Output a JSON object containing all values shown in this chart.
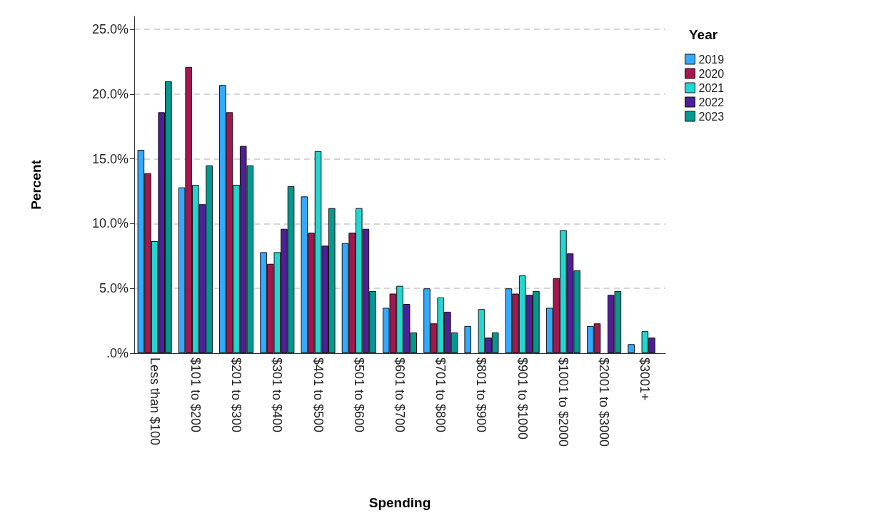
{
  "chart_data": {
    "type": "bar",
    "xlabel": "Spending",
    "ylabel": "Percent",
    "legend_title": "Year",
    "categories": [
      "Less than $100",
      "$101 to $200",
      "$201 to $300",
      "$301 to $400",
      "$401 to $500",
      "$501 to $600",
      "$601 to $700",
      "$701 to $800",
      "$801 to $900",
      "$901 to $1000",
      "$1001 to $2000",
      "$2001 to $3000",
      "$3001+"
    ],
    "series": [
      {
        "name": "2019",
        "color": "#33aaff",
        "values": [
          15.7,
          12.8,
          20.7,
          7.8,
          12.1,
          8.5,
          3.5,
          5.0,
          2.1,
          5.0,
          3.5,
          2.1,
          0.7
        ]
      },
      {
        "name": "2020",
        "color": "#a3174f",
        "values": [
          13.9,
          22.1,
          18.6,
          6.9,
          9.3,
          9.3,
          4.6,
          2.3,
          null,
          4.6,
          5.8,
          2.3,
          null
        ]
      },
      {
        "name": "2021",
        "color": "#24d6cf",
        "values": [
          8.65,
          13.0,
          13.0,
          7.8,
          15.6,
          11.2,
          5.2,
          4.3,
          3.4,
          6.0,
          9.5,
          null,
          1.7
        ]
      },
      {
        "name": "2022",
        "color": "#4f1f96",
        "values": [
          18.6,
          11.5,
          16.0,
          9.6,
          8.3,
          9.6,
          3.8,
          3.2,
          1.2,
          4.5,
          7.7,
          4.5,
          1.2
        ]
      },
      {
        "name": "2023",
        "color": "#03998f",
        "values": [
          21.0,
          14.5,
          14.5,
          12.9,
          11.2,
          4.8,
          1.6,
          1.6,
          1.6,
          4.8,
          6.4,
          4.8,
          null
        ]
      }
    ],
    "ylim": [
      0,
      26
    ],
    "yticks": [
      {
        "value": 0,
        "label": ".0%"
      },
      {
        "value": 5,
        "label": "5.0%"
      },
      {
        "value": 10,
        "label": "10.0%"
      },
      {
        "value": 15,
        "label": "15.0%"
      },
      {
        "value": 20,
        "label": "20.0%"
      },
      {
        "value": 25,
        "label": "25.0%"
      }
    ],
    "grid": "y",
    "legend": "top right"
  }
}
